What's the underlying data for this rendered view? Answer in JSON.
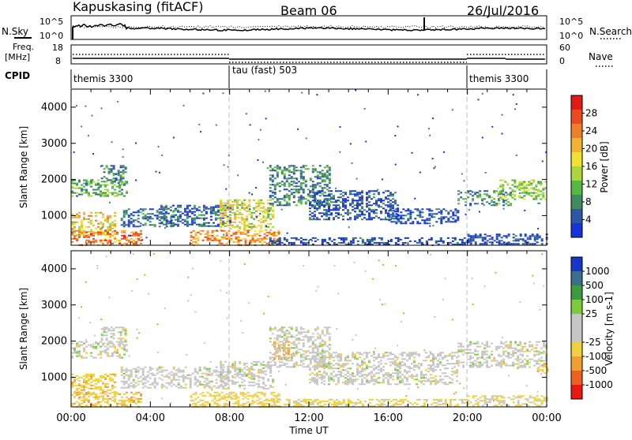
{
  "header": {
    "station": "Kapuskasing (fitACF)",
    "beam": "Beam 06",
    "date": "26/Jul/2016"
  },
  "noise_panel": {
    "left_label": "N.Sky",
    "left_ticks": [
      "10^5",
      "10^0"
    ],
    "right_ticks": [
      "10^5",
      "10^0"
    ],
    "right_label": "N.Search"
  },
  "freq_panel": {
    "left_label_line1": "Freq.",
    "left_label_line2": "[MHz]",
    "left_ticks": [
      "18",
      "8"
    ],
    "right_ticks": [
      "60",
      "0"
    ],
    "right_label": "Nave",
    "freq_mhz": 10.2,
    "nave": 26
  },
  "cpid_panel": {
    "label": "CPID",
    "segments": [
      {
        "name": "themis 3300",
        "start_h": 0,
        "end_h": 8
      },
      {
        "name": "tau (fast) 503",
        "start_h": 8,
        "end_h": 20
      },
      {
        "name": "themis 3300",
        "start_h": 20,
        "end_h": 24
      }
    ]
  },
  "chart_data": [
    {
      "type": "heatmap",
      "name": "power",
      "ylabel": "Slant Range [km]",
      "yticks": [
        "1000",
        "2000",
        "3000",
        "4000"
      ],
      "ylim": [
        180,
        4500
      ],
      "xlim": [
        0,
        24
      ],
      "colorbar_label": "Power [dB]",
      "colorbar_ticks": [
        "4",
        "8",
        "12",
        "16",
        "20",
        "24",
        "28"
      ],
      "colorbar_colors": [
        "#1533d8",
        "#2f56a4",
        "#3f8a60",
        "#55b844",
        "#a8d83c",
        "#f0e030",
        "#f2b236",
        "#ef7f2a",
        "#ea4a22",
        "#e01a14"
      ],
      "echo_regions": [
        {
          "t0": 0.0,
          "t1": 2.8,
          "r0": 1550,
          "r1": 2000,
          "value": 12
        },
        {
          "t0": 1.5,
          "t1": 2.8,
          "r0": 1900,
          "r1": 2400,
          "value": 10
        },
        {
          "t0": 0.0,
          "t1": 2.2,
          "r0": 450,
          "r1": 1100,
          "value": 18
        },
        {
          "t0": 0.0,
          "t1": 3.5,
          "r0": 200,
          "r1": 600,
          "value": 22
        },
        {
          "t0": 2.5,
          "t1": 5.2,
          "r0": 700,
          "r1": 1200,
          "value": 8
        },
        {
          "t0": 4.5,
          "t1": 8.0,
          "r0": 700,
          "r1": 1300,
          "value": 8
        },
        {
          "t0": 7.5,
          "t1": 10.2,
          "r0": 600,
          "r1": 1450,
          "value": 17
        },
        {
          "t0": 6.0,
          "t1": 10.5,
          "r0": 200,
          "r1": 600,
          "value": 21
        },
        {
          "t0": 10.0,
          "t1": 13.0,
          "r0": 1300,
          "r1": 2400,
          "value": 10
        },
        {
          "t0": 12.0,
          "t1": 16.5,
          "r0": 900,
          "r1": 1700,
          "value": 7
        },
        {
          "t0": 16.0,
          "t1": 19.5,
          "r0": 800,
          "r1": 1200,
          "value": 6
        },
        {
          "t0": 10.0,
          "t1": 20.0,
          "r0": 200,
          "r1": 400,
          "value": 6
        },
        {
          "t0": 19.5,
          "t1": 22.2,
          "r0": 1300,
          "r1": 1700,
          "value": 10
        },
        {
          "t0": 21.5,
          "t1": 24.0,
          "r0": 1450,
          "r1": 2000,
          "value": 14
        },
        {
          "t0": 20.0,
          "t1": 24.0,
          "r0": 200,
          "r1": 500,
          "value": 6
        }
      ]
    },
    {
      "type": "heatmap",
      "name": "velocity",
      "ylabel": "Slant Range [km]",
      "yticks": [
        "1000",
        "2000",
        "3000",
        "4000"
      ],
      "ylim": [
        180,
        4500
      ],
      "xlim": [
        0,
        24
      ],
      "xticks": [
        "00:00",
        "04:00",
        "08:00",
        "12:00",
        "16:00",
        "20:00",
        "00:00"
      ],
      "xlabel": "Time UT",
      "colorbar_label": "Velocity [m s-1]",
      "colorbar_ticks": [
        "1000",
        "500",
        "100",
        "25",
        "-25",
        "-100",
        "-500",
        "-1000"
      ],
      "colorbar_colors": [
        "#1a36c8",
        "#3a6e8c",
        "#3c9a40",
        "#7ccc3a",
        "#c6c6c6",
        "#c6c6c6",
        "#f0d040",
        "#f0a030",
        "#ee6020",
        "#e81810"
      ],
      "echo_regions": [
        {
          "t0": 0.0,
          "t1": 2.8,
          "r0": 1550,
          "r1": 2000,
          "value": 0
        },
        {
          "t0": 1.5,
          "t1": 2.8,
          "r0": 1900,
          "r1": 2400,
          "value": 0
        },
        {
          "t0": 0.0,
          "t1": 2.2,
          "r0": 450,
          "r1": 1100,
          "value": -80
        },
        {
          "t0": 0.0,
          "t1": 3.5,
          "r0": 200,
          "r1": 600,
          "value": -90
        },
        {
          "t0": 2.5,
          "t1": 8.0,
          "r0": 700,
          "r1": 1300,
          "value": 0
        },
        {
          "t0": 7.5,
          "t1": 10.2,
          "r0": 700,
          "r1": 1450,
          "value": 0
        },
        {
          "t0": 10.2,
          "t1": 11.0,
          "r0": 1500,
          "r1": 2000,
          "value": -150
        },
        {
          "t0": 6.0,
          "t1": 10.5,
          "r0": 200,
          "r1": 600,
          "value": -60
        },
        {
          "t0": 10.0,
          "t1": 13.0,
          "r0": 1300,
          "r1": 2400,
          "value": 0
        },
        {
          "t0": 12.0,
          "t1": 19.5,
          "r0": 800,
          "r1": 1700,
          "value": 0
        },
        {
          "t0": 10.0,
          "t1": 20.0,
          "r0": 200,
          "r1": 400,
          "value": -40
        },
        {
          "t0": 19.5,
          "t1": 24.0,
          "r0": 1300,
          "r1": 2000,
          "value": 0
        },
        {
          "t0": 23.5,
          "t1": 24.0,
          "r0": 1100,
          "r1": 1400,
          "value": -90
        },
        {
          "t0": 20.0,
          "t1": 24.0,
          "r0": 200,
          "r1": 500,
          "value": -30
        }
      ]
    }
  ]
}
